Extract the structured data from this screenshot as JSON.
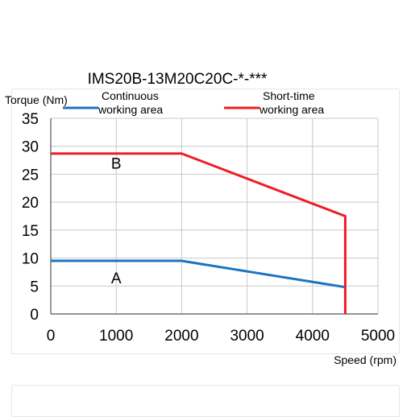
{
  "chart_data": {
    "type": "line",
    "title": "IMS20B-13M20C20C-*-***",
    "ylabel": "Torque (Nm)",
    "xlabel": "Speed (rpm)",
    "xlim": [
      0,
      5000
    ],
    "ylim": [
      0,
      35
    ],
    "x_ticks": [
      "0",
      "1000",
      "2000",
      "3000",
      "4000",
      "5000"
    ],
    "y_ticks": [
      "0",
      "5",
      "10",
      "15",
      "20",
      "25",
      "30",
      "35"
    ],
    "grid": true,
    "series": [
      {
        "name": "Continuous working area",
        "name_lines": [
          "Continuous",
          "working area"
        ],
        "color": "#1e73be",
        "x": [
          0,
          2000,
          4500
        ],
        "y": [
          9.5,
          9.5,
          4.8
        ]
      },
      {
        "name": "Short-time working area",
        "name_lines": [
          "Short-time",
          "working area"
        ],
        "color": "#ee1c25",
        "x": [
          0,
          2000,
          4500,
          4500
        ],
        "y": [
          28.7,
          28.7,
          17.5,
          0
        ]
      }
    ],
    "annotations": [
      {
        "text": "A",
        "x": 1000,
        "y": 6.5
      },
      {
        "text": "B",
        "x": 1000,
        "y": 27
      }
    ]
  }
}
